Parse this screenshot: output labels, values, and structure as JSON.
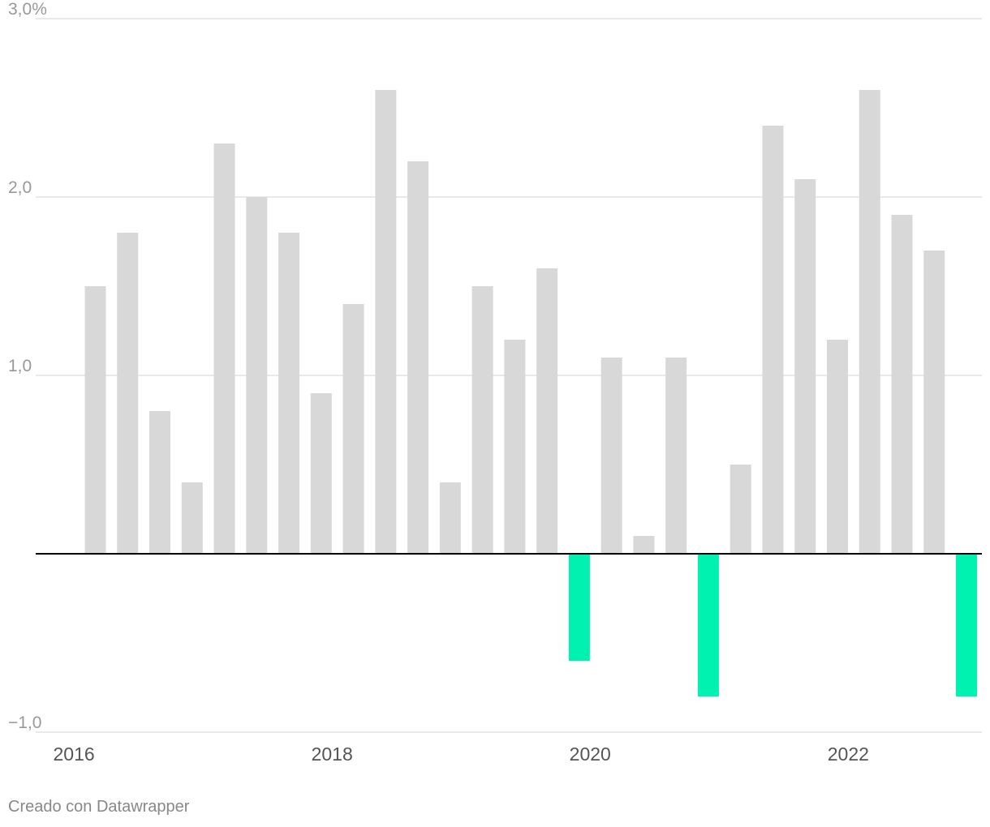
{
  "chart_data": {
    "type": "bar",
    "x": [
      "2016-Q1",
      "2016-Q2",
      "2016-Q3",
      "2016-Q4",
      "2017-Q1",
      "2017-Q2",
      "2017-Q3",
      "2017-Q4",
      "2018-Q1",
      "2018-Q2",
      "2018-Q3",
      "2018-Q4",
      "2019-Q1",
      "2019-Q2",
      "2019-Q3",
      "2019-Q4",
      "2020-Q1",
      "2020-Q2",
      "2020-Q3",
      "2020-Q4",
      "2021-Q1",
      "2021-Q2",
      "2021-Q3",
      "2021-Q4",
      "2022-Q1",
      "2022-Q2",
      "2022-Q3",
      "2022-Q4"
    ],
    "values": [
      1.5,
      1.8,
      0.8,
      0.4,
      2.3,
      2.0,
      1.8,
      0.9,
      1.4,
      2.6,
      2.2,
      0.4,
      1.5,
      1.2,
      1.6,
      -0.6,
      1.1,
      0.1,
      1.1,
      -0.8,
      0.5,
      2.4,
      2.1,
      1.2,
      2.6,
      1.9,
      1.7,
      -0.8
    ],
    "ylim": [
      -1.0,
      3.0
    ],
    "y_ticks": [
      {
        "value": 3.0,
        "label": "3,0%"
      },
      {
        "value": 2.0,
        "label": "2,0"
      },
      {
        "value": 1.0,
        "label": "1,0"
      },
      {
        "value": -1.0,
        "label": "−1,0"
      }
    ],
    "x_ticks": [
      "2016",
      "2018",
      "2020",
      "2022"
    ],
    "grid": true,
    "colors": {
      "positive": "#d8d8d8",
      "negative": "#00f2b0"
    },
    "title": "",
    "xlabel": "",
    "ylabel": ""
  },
  "footer": {
    "credit": "Creado con Datawrapper"
  }
}
